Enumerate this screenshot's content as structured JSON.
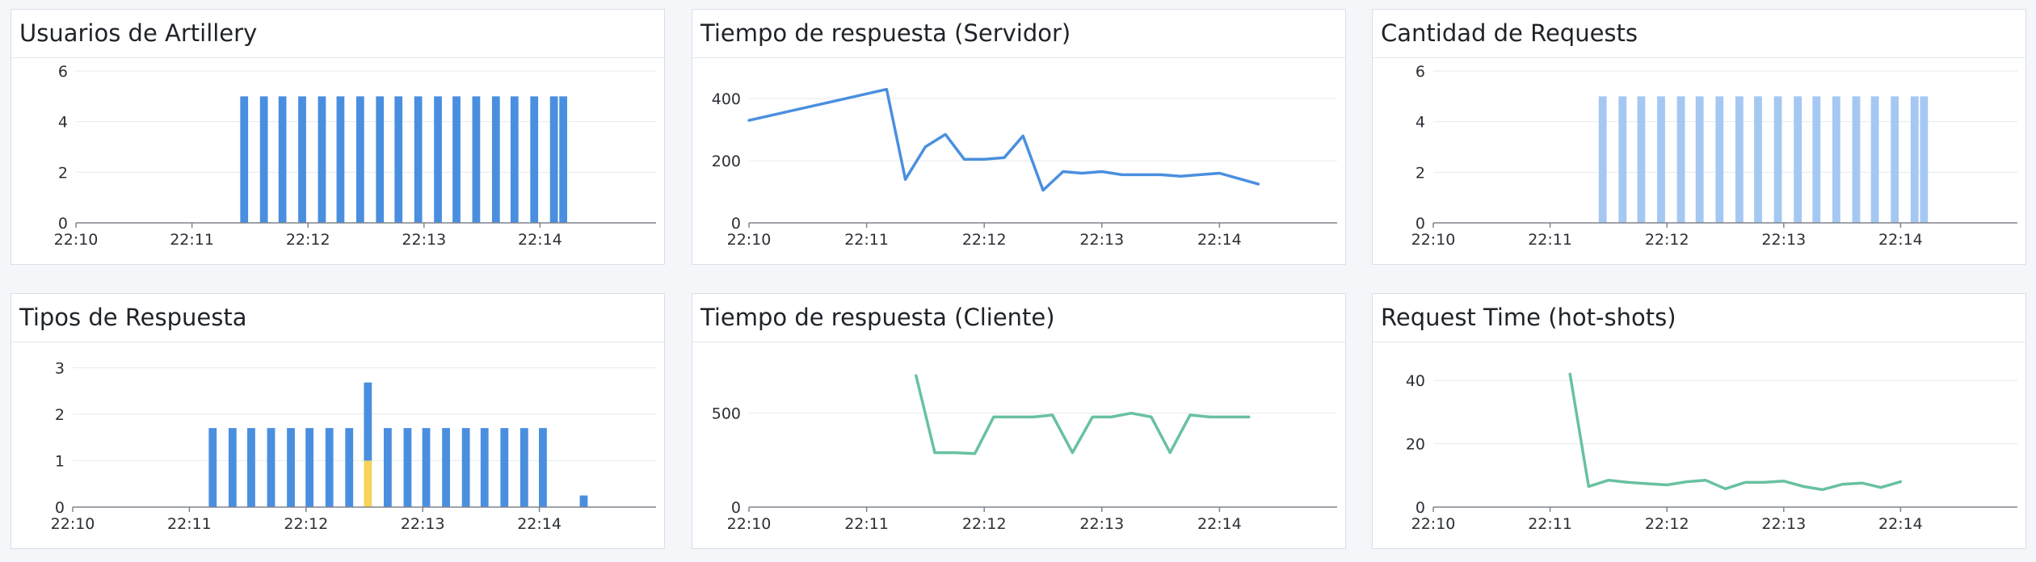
{
  "colors": {
    "blue": "#4a8fdf",
    "light_blue": "#a5c8f3",
    "yellow": "#f6d35b",
    "green": "#68c19f",
    "grid": "#e6e9ef",
    "axis": "#7e848e"
  },
  "panels": [
    {
      "id": "usuarios",
      "title": "Usuarios de Artillery",
      "chart_data": {
        "type": "bar",
        "x_ticks": [
          "22:10",
          "22:11",
          "22:12",
          "22:13",
          "22:14"
        ],
        "xlim": [
          0,
          5
        ],
        "ylim": [
          0,
          6
        ],
        "y_ticks": [
          0,
          2,
          4,
          6
        ],
        "bar_width": 0.068,
        "series": [
          {
            "color": "blue",
            "x": [
              1.45,
              1.62,
              1.78,
              1.95,
              2.12,
              2.28,
              2.45,
              2.62,
              2.78,
              2.95,
              3.12,
              3.28,
              3.45,
              3.62,
              3.78,
              3.95,
              4.12,
              4.2
            ],
            "values": [
              5,
              5,
              5,
              5,
              5,
              5,
              5,
              5,
              5,
              5,
              5,
              5,
              5,
              5,
              5,
              5,
              5,
              5
            ]
          }
        ]
      }
    },
    {
      "id": "servidor",
      "title": "Tiempo de respuesta (Servidor)",
      "chart_data": {
        "type": "line",
        "x_ticks": [
          "22:10",
          "22:11",
          "22:12",
          "22:13",
          "22:14"
        ],
        "xlim": [
          0,
          5
        ],
        "ylim": [
          0,
          520
        ],
        "y_ticks": [
          0,
          200,
          400
        ],
        "series": [
          {
            "color": "blue",
            "x": [
              0,
              1.17,
              1.33,
              1.5,
              1.67,
              1.83,
              2.0,
              2.17,
              2.33,
              2.5,
              2.67,
              2.83,
              3.0,
              3.17,
              3.33,
              3.5,
              3.67,
              3.83,
              4.0,
              4.33
            ],
            "values": [
              330,
              430,
              140,
              245,
              285,
              205,
              205,
              210,
              280,
              105,
              165,
              160,
              165,
              155,
              155,
              155,
              150,
              155,
              160,
              125
            ]
          }
        ]
      }
    },
    {
      "id": "requests",
      "title": "Cantidad de Requests",
      "chart_data": {
        "type": "bar",
        "x_ticks": [
          "22:10",
          "22:11",
          "22:12",
          "22:13",
          "22:14"
        ],
        "xlim": [
          0,
          5
        ],
        "ylim": [
          0,
          6
        ],
        "y_ticks": [
          0,
          2,
          4,
          6
        ],
        "bar_width": 0.068,
        "series": [
          {
            "color": "light_blue",
            "x": [
              1.45,
              1.62,
              1.78,
              1.95,
              2.12,
              2.28,
              2.45,
              2.62,
              2.78,
              2.95,
              3.12,
              3.28,
              3.45,
              3.62,
              3.78,
              3.95,
              4.12,
              4.2
            ],
            "values": [
              5,
              5,
              5,
              5,
              5,
              5,
              5,
              5,
              5,
              5,
              5,
              5,
              5,
              5,
              5,
              5,
              5,
              5
            ]
          }
        ]
      }
    },
    {
      "id": "tipos",
      "title": "Tipos de Respuesta",
      "chart_data": {
        "type": "bar",
        "stacked": true,
        "x_ticks": [
          "22:10",
          "22:11",
          "22:12",
          "22:13",
          "22:14"
        ],
        "xlim": [
          0,
          5
        ],
        "ylim": [
          0,
          3.3
        ],
        "y_ticks": [
          0,
          1,
          2,
          3
        ],
        "bar_width": 0.068,
        "x": [
          1.2,
          1.37,
          1.53,
          1.7,
          1.87,
          2.03,
          2.2,
          2.37,
          2.53,
          2.7,
          2.87,
          3.03,
          3.2,
          3.37,
          3.53,
          3.7,
          3.87,
          4.03,
          4.38
        ],
        "series": [
          {
            "color": "yellow",
            "values": [
              0,
              0,
              0,
              0,
              0,
              0,
              0,
              0,
              1.0,
              0,
              0,
              0,
              0,
              0,
              0,
              0,
              0,
              0,
              0
            ]
          },
          {
            "color": "blue",
            "values": [
              1.7,
              1.7,
              1.7,
              1.7,
              1.7,
              1.7,
              1.7,
              1.7,
              1.68,
              1.7,
              1.7,
              1.7,
              1.7,
              1.7,
              1.7,
              1.7,
              1.7,
              1.7,
              0.25
            ]
          }
        ]
      }
    },
    {
      "id": "cliente",
      "title": "Tiempo de respuesta (Cliente)",
      "chart_data": {
        "type": "line",
        "x_ticks": [
          "22:10",
          "22:11",
          "22:12",
          "22:13",
          "22:14"
        ],
        "xlim": [
          0,
          5
        ],
        "ylim": [
          0,
          860
        ],
        "y_ticks": [
          0,
          500
        ],
        "series": [
          {
            "color": "green",
            "x": [
              1.42,
              1.58,
              1.75,
              1.92,
              2.08,
              2.25,
              2.42,
              2.58,
              2.75,
              2.92,
              3.08,
              3.25,
              3.42,
              3.58,
              3.75,
              3.92,
              4.08,
              4.25
            ],
            "values": [
              700,
              290,
              290,
              285,
              480,
              480,
              480,
              490,
              290,
              480,
              480,
              500,
              480,
              290,
              490,
              480,
              480,
              480
            ]
          }
        ]
      }
    },
    {
      "id": "hotshots",
      "title": "Request Time (hot-shots)",
      "chart_data": {
        "type": "line",
        "x_ticks": [
          "22:10",
          "22:11",
          "22:12",
          "22:13",
          "22:14"
        ],
        "xlim": [
          0,
          5
        ],
        "ylim": [
          0,
          51
        ],
        "y_ticks": [
          0,
          20,
          40
        ],
        "series": [
          {
            "color": "green",
            "x": [
              1.17,
              1.33,
              1.5,
              1.67,
              1.83,
              2.0,
              2.17,
              2.33,
              2.5,
              2.67,
              2.83,
              3.0,
              3.17,
              3.33,
              3.5,
              3.67,
              3.83,
              4.0
            ],
            "values": [
              42,
              6.5,
              8.5,
              7.8,
              7.4,
              7,
              8,
              8.5,
              5.8,
              7.8,
              7.8,
              8.2,
              6.5,
              5.5,
              7.2,
              7.6,
              6.2,
              8
            ]
          }
        ]
      }
    }
  ]
}
